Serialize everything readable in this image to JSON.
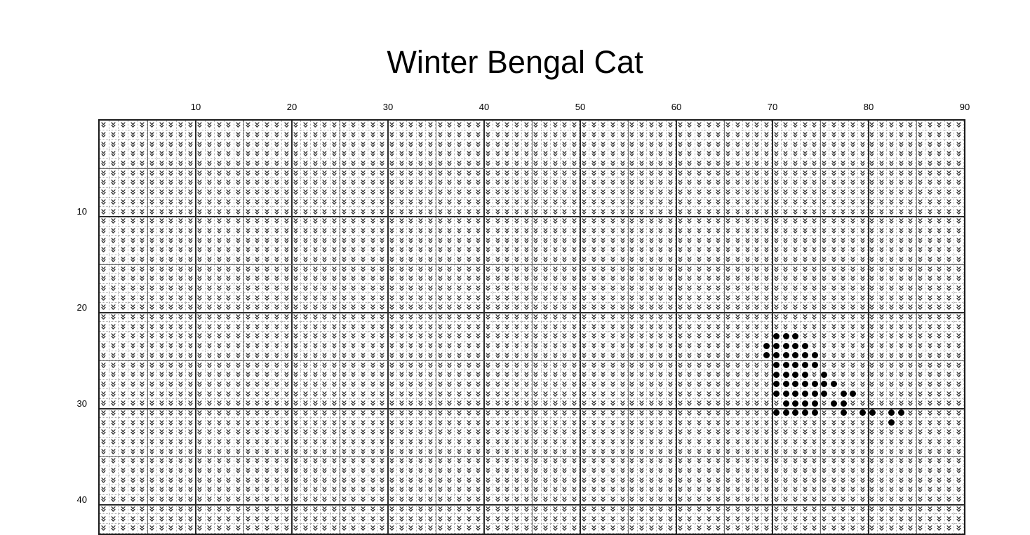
{
  "title": "Winter Bengal Cat",
  "chart_data": {
    "type": "heatmap",
    "subtype": "cross-stitch-pattern-grid",
    "title": "Winter Bengal Cat",
    "x_axis": {
      "position": "top",
      "tick_step": 10,
      "tick_labels": [
        "10",
        "20",
        "30",
        "40",
        "50",
        "60",
        "70",
        "80",
        "90"
      ]
    },
    "y_axis": {
      "position": "left",
      "tick_step": 10,
      "tick_labels": [
        "10",
        "20",
        "30",
        "40"
      ]
    },
    "grid": {
      "columns": 90,
      "visible_rows": 43,
      "rows_cut_off_at_bottom": true,
      "minor_line_every": 1,
      "medium_line_every": 5,
      "major_line_every": 10,
      "minor_line_style": "dotted"
    },
    "symbols": {
      "background": {
        "name": "double-chevron-down-stitch",
        "glyph": "»",
        "rotation_deg": 90,
        "color": "#3a3a3a"
      },
      "spot": {
        "name": "black-dot-stitch",
        "glyph": "●",
        "color": "#000000"
      }
    },
    "dot_cells": [
      {
        "row": 23,
        "cols": [
          71,
          72,
          73
        ]
      },
      {
        "row": 24,
        "cols": [
          70,
          71,
          72,
          73,
          74
        ]
      },
      {
        "row": 25,
        "cols": [
          70,
          71,
          72,
          73,
          74,
          75
        ]
      },
      {
        "row": 26,
        "cols": [
          71,
          72,
          73,
          74,
          75
        ]
      },
      {
        "row": 27,
        "cols": [
          71,
          72,
          73,
          74,
          76
        ]
      },
      {
        "row": 28,
        "cols": [
          71,
          72,
          73,
          74,
          75,
          76,
          77
        ]
      },
      {
        "row": 29,
        "cols": [
          71,
          72,
          73,
          74,
          75,
          76,
          78,
          79
        ]
      },
      {
        "row": 30,
        "cols": [
          72,
          73,
          74,
          75,
          77,
          78
        ]
      },
      {
        "row": 31,
        "cols": [
          71,
          72,
          73,
          74,
          75,
          78,
          80,
          81,
          83,
          84
        ]
      },
      {
        "row": 32,
        "cols": [
          83
        ]
      }
    ],
    "colors": {
      "background": "#ffffff",
      "symbol": "#3a3a3a",
      "dot": "#000000",
      "grid_minor": "#b0b0b0",
      "grid_medium": "#6e6e6e",
      "grid_major": "#2b2b2b",
      "border": "#1a1a1a",
      "text": "#000000"
    },
    "legend": "none-visible"
  }
}
